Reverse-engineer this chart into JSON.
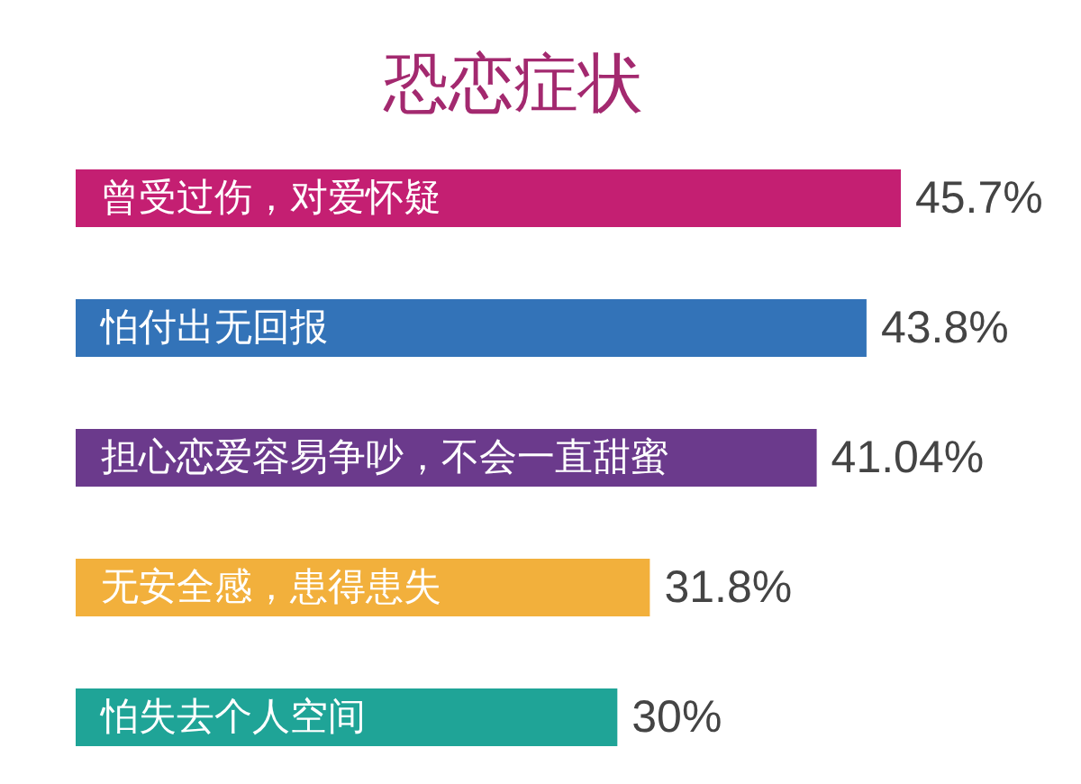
{
  "chart_data": {
    "type": "bar",
    "orientation": "horizontal",
    "title": "恐恋症状",
    "categories": [
      "曾受过伤，对爱怀疑",
      "怕付出无回报",
      "担心恋爱容易争吵，不会一直甜蜜",
      "无安全感，患得患失",
      "怕失去个人空间"
    ],
    "values": [
      45.7,
      43.8,
      41.04,
      31.8,
      30
    ],
    "colors": [
      "#c41f72",
      "#3373b8",
      "#6b3a8c",
      "#f2b03c",
      "#1fa497"
    ],
    "value_labels": [
      "45.7%",
      "43.8%",
      "41.04%",
      "31.8%",
      "30%"
    ]
  }
}
